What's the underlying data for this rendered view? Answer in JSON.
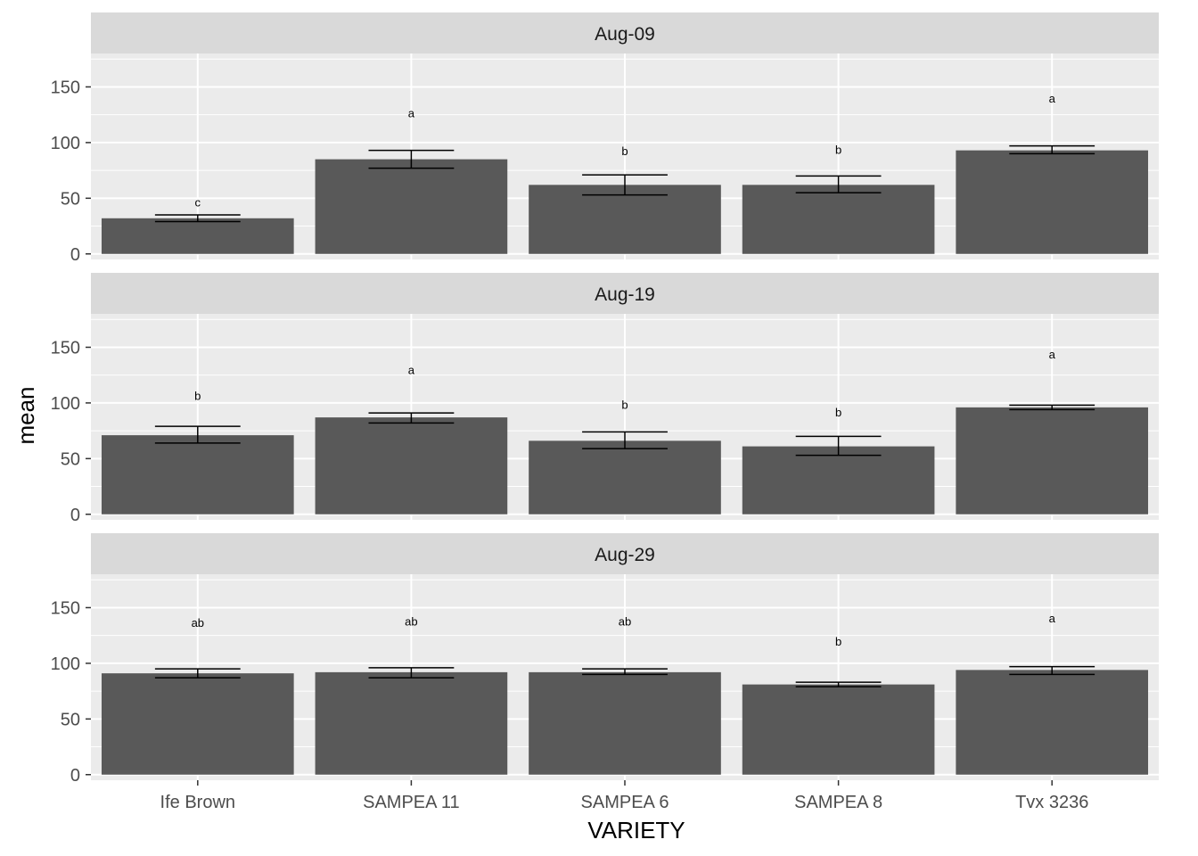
{
  "chart_data": {
    "type": "bar",
    "facet_by": "date",
    "xlabel": "VARIETY",
    "ylabel": "mean",
    "categories": [
      "Ife Brown",
      "SAMPEA 11",
      "SAMPEA 6",
      "SAMPEA 8",
      "Tvx 3236"
    ],
    "ylim": [
      -5,
      180
    ],
    "yticks": [
      0,
      50,
      100,
      150
    ],
    "grid": true,
    "legend": "none",
    "colors": {
      "bar": "#595959",
      "panel": "#ebebeb",
      "strip": "#d9d9d9",
      "grid": "#ffffff",
      "error_bar": "#000000"
    },
    "panels": [
      {
        "label": "Aug-09",
        "values": [
          32,
          85,
          62,
          62,
          93
        ],
        "error_low": [
          29,
          77,
          53,
          55,
          90
        ],
        "error_high": [
          35,
          93,
          71,
          70,
          97
        ],
        "letters": [
          "c",
          "a",
          "b",
          "b",
          "a"
        ],
        "letter_y": [
          46,
          126,
          92,
          93,
          139
        ]
      },
      {
        "label": "Aug-19",
        "values": [
          71,
          87,
          66,
          61,
          96
        ],
        "error_low": [
          64,
          82,
          59,
          53,
          94
        ],
        "error_high": [
          79,
          91,
          74,
          70,
          98
        ],
        "letters": [
          "b",
          "a",
          "b",
          "b",
          "a"
        ],
        "letter_y": [
          106,
          129,
          98,
          91,
          143
        ]
      },
      {
        "label": "Aug-29",
        "values": [
          91,
          92,
          92,
          81,
          94
        ],
        "error_low": [
          87,
          87,
          90,
          79,
          90
        ],
        "error_high": [
          95,
          96,
          95,
          83,
          97
        ],
        "letters": [
          "ab",
          "ab",
          "ab",
          "b",
          "a"
        ],
        "letter_y": [
          136,
          137,
          137,
          119,
          140
        ]
      }
    ]
  }
}
